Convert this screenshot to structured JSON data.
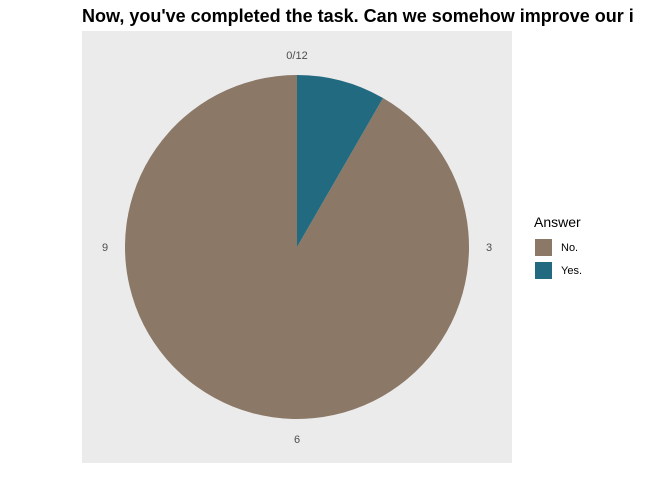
{
  "chart_data": {
    "type": "pie",
    "title": "Now, you've completed the task. Can we somehow improve our i",
    "slices": [
      {
        "label": "No.",
        "value": 11,
        "color": "#8b7866"
      },
      {
        "label": "Yes.",
        "value": 1,
        "color": "#226a80"
      }
    ],
    "theta_ticks": [
      "0/12",
      "3",
      "6",
      "9"
    ],
    "legend": {
      "title": "Answer",
      "position": "right"
    },
    "panel_background": "#ebebeb",
    "grid": false
  }
}
